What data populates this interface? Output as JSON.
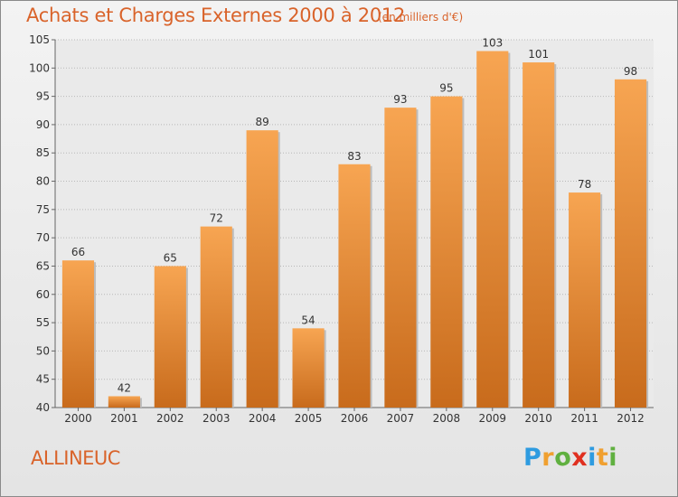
{
  "header": {
    "title": "Achats et Charges Externes 2000 à 2012",
    "unit": "(en milliers d'€)"
  },
  "footer": {
    "commune": "ALLINEUC",
    "logo": {
      "letters": [
        "P",
        "r",
        "o",
        "x",
        "i",
        "t",
        "i"
      ],
      "colors": [
        "#2e9be0",
        "#f0a030",
        "#60b040",
        "#e03020",
        "#2e9be0",
        "#f0a030",
        "#60b040"
      ]
    }
  },
  "colors": {
    "bar_top": "#f7a552",
    "bar_bottom": "#c86b1c",
    "title": "#d9632a"
  },
  "chart_data": {
    "type": "bar",
    "title": "Achats et Charges Externes 2000 à 2012",
    "subtitle": "(en milliers d'€)",
    "xlabel": "",
    "ylabel": "",
    "categories": [
      "2000",
      "2001",
      "2002",
      "2003",
      "2004",
      "2005",
      "2006",
      "2007",
      "2008",
      "2009",
      "2010",
      "2011",
      "2012"
    ],
    "values": [
      66,
      42,
      65,
      72,
      89,
      54,
      83,
      93,
      95,
      103,
      101,
      78,
      98
    ],
    "ylim": [
      40,
      105
    ],
    "yticks": [
      40,
      45,
      50,
      55,
      60,
      65,
      70,
      75,
      80,
      85,
      90,
      95,
      100,
      105
    ],
    "grid": true,
    "show_value_labels": true
  }
}
